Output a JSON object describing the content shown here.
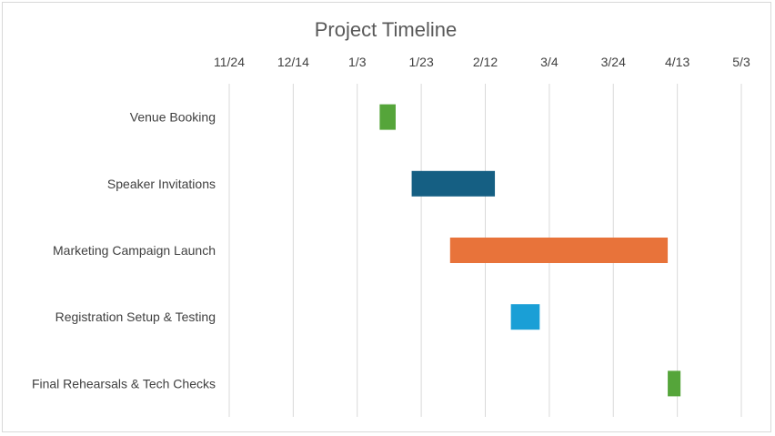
{
  "chart_data": {
    "type": "bar",
    "orientation": "horizontal-gantt",
    "title": "Project Timeline",
    "xlabel": "",
    "ylabel": "",
    "x_axis_position": "top",
    "grid": true,
    "legend": "none",
    "xlim": [
      "2024-11-24",
      "2025-05-03"
    ],
    "x_tick_labels": [
      "11/24",
      "12/14",
      "1/3",
      "1/23",
      "2/12",
      "3/4",
      "3/24",
      "4/13",
      "5/3"
    ],
    "tasks": [
      {
        "name": "Venue Booking",
        "start": "2025-01-10",
        "end": "2025-01-15",
        "color": "#55a53a"
      },
      {
        "name": "Speaker Invitations",
        "start": "2025-01-20",
        "end": "2025-02-15",
        "color": "#155f83"
      },
      {
        "name": "Marketing Campaign Launch",
        "start": "2025-02-01",
        "end": "2025-04-10",
        "color": "#e8733a"
      },
      {
        "name": "Registration Setup & Testing",
        "start": "2025-02-20",
        "end": "2025-03-01",
        "color": "#1a9fd6"
      },
      {
        "name": "Final Rehearsals & Tech Checks",
        "start": "2025-04-10",
        "end": "2025-04-14",
        "color": "#55a53a"
      }
    ]
  }
}
